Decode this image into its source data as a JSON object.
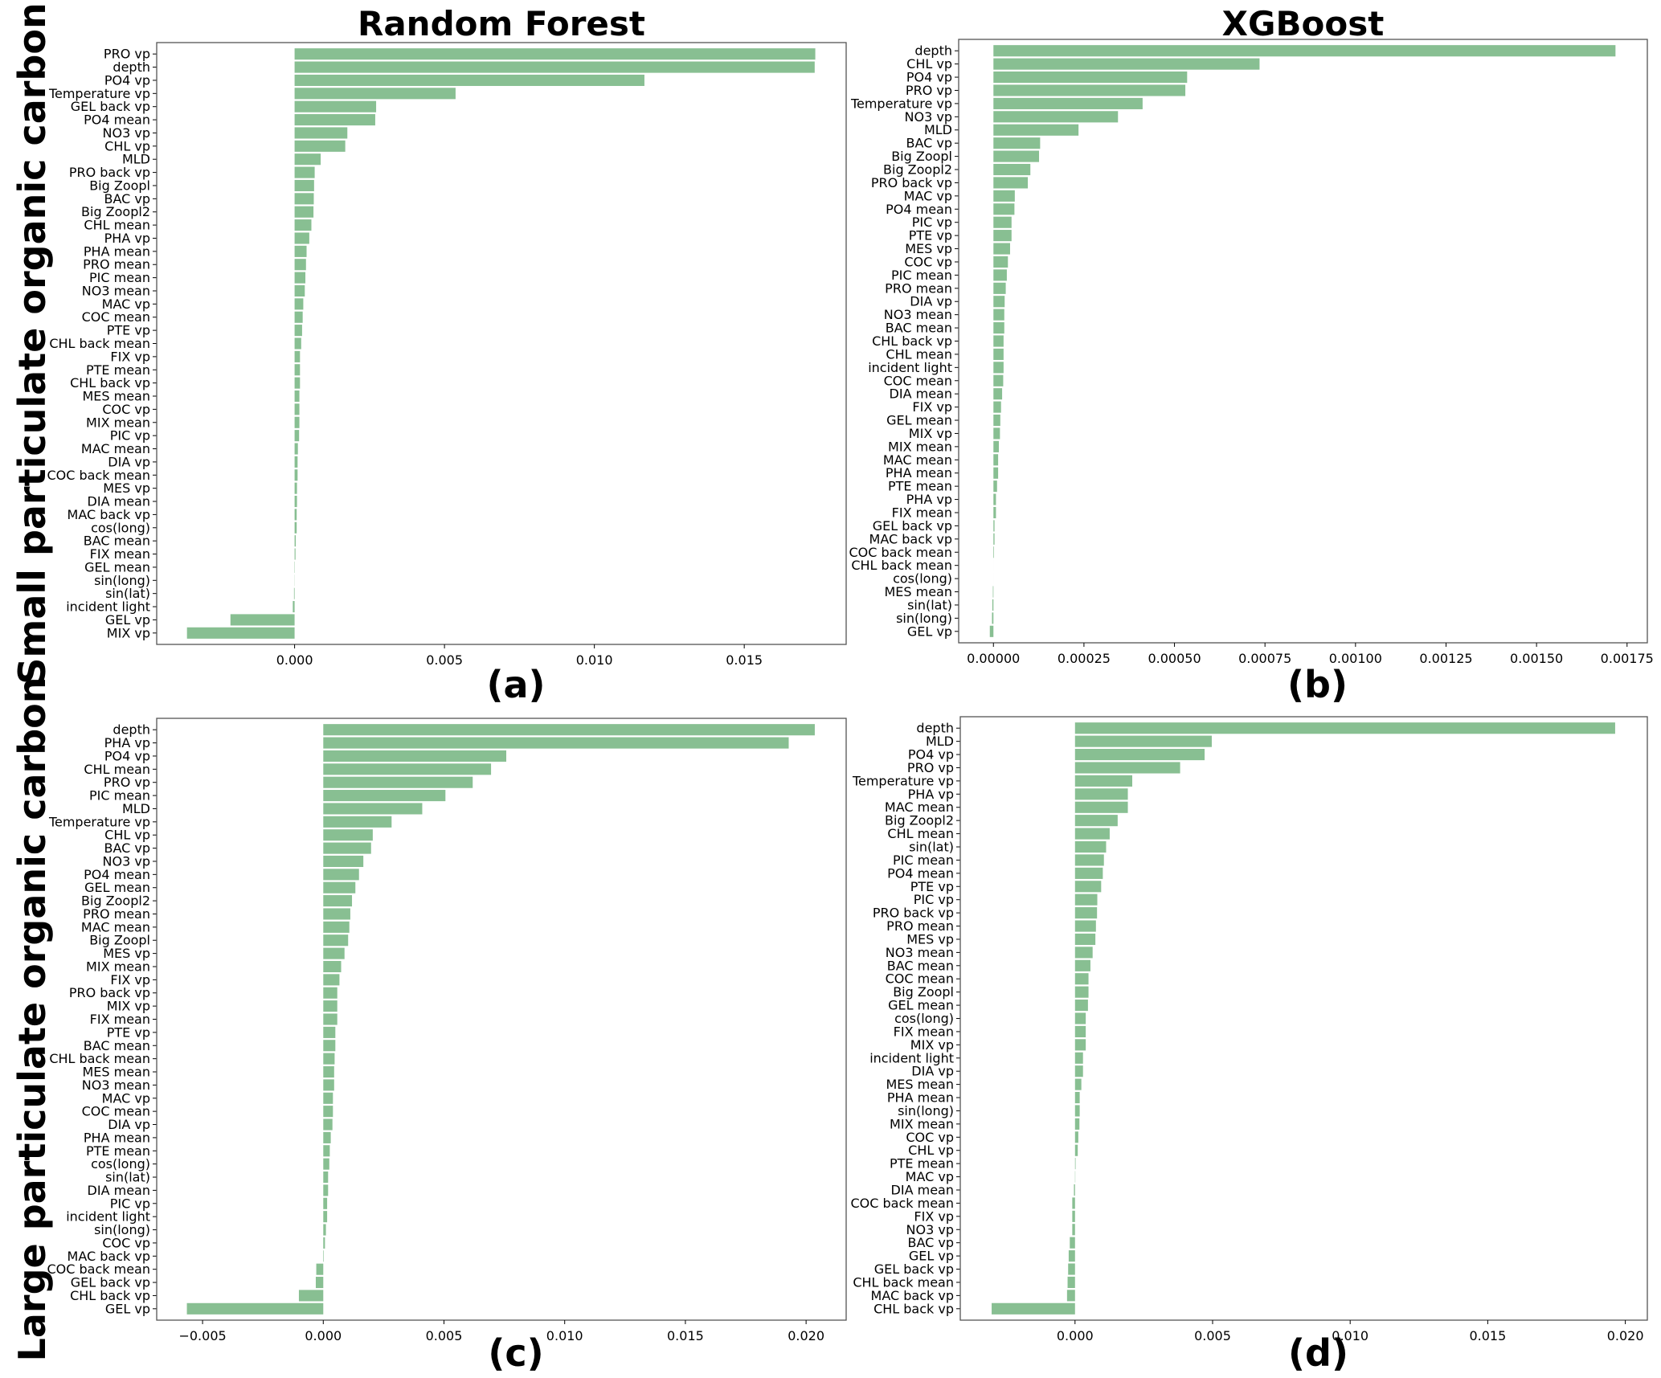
{
  "colors": {
    "bar": "#88bf92",
    "frame": "#555555"
  },
  "chart_data": [
    {
      "type": "bar",
      "orientation": "horizontal",
      "title": "Random Forest",
      "panel_label": "(a)",
      "ylabel": "Small particulate organic carbon",
      "xlim": [
        -0.0046,
        0.0184
      ],
      "xticks": [
        0,
        0.005,
        0.01,
        0.015
      ],
      "xtick_labels": [
        "0.000",
        "0.005",
        "0.010",
        "0.015"
      ],
      "categories": [
        "PRO vp",
        "depth",
        "PO4 vp",
        "Temperature vp",
        "GEL back vp",
        "PO4 mean",
        "NO3 vp",
        "CHL vp",
        "MLD",
        "PRO back vp",
        "Big Zoopl",
        "BAC vp",
        "Big Zoopl2",
        "CHL mean",
        "PHA vp",
        "PHA mean",
        "PRO mean",
        "PIC mean",
        "NO3 mean",
        "MAC vp",
        "COC mean",
        "PTE vp",
        "CHL back mean",
        "FIX vp",
        "PTE mean",
        "CHL back vp",
        "MES mean",
        "COC vp",
        "MIX mean",
        "PIC vp",
        "MAC mean",
        "DIA vp",
        "COC back mean",
        "MES vp",
        "DIA mean",
        "MAC back vp",
        "cos(long)",
        "BAC mean",
        "FIX mean",
        "GEL mean",
        "sin(long)",
        "sin(lat)",
        "incident light",
        "GEL vp",
        "MIX vp"
      ],
      "values": [
        0.01737,
        0.01735,
        0.01167,
        0.00537,
        0.00272,
        0.00269,
        0.00176,
        0.00169,
        0.00087,
        0.00067,
        0.00065,
        0.00064,
        0.00063,
        0.00056,
        0.00049,
        0.0004,
        0.00038,
        0.00036,
        0.00034,
        0.00029,
        0.00027,
        0.00025,
        0.00022,
        0.00018,
        0.00018,
        0.00018,
        0.00016,
        0.00016,
        0.00016,
        0.00015,
        0.00011,
        0.0001,
        0.0001,
        8e-05,
        8e-05,
        7e-05,
        7e-05,
        4e-05,
        3e-05,
        1e-05,
        5e-06,
        -2e-05,
        -6e-05,
        -0.00214,
        -0.00359
      ]
    },
    {
      "type": "bar",
      "orientation": "horizontal",
      "title": "XGBoost",
      "panel_label": "(b)",
      "xlim": [
        -9.6e-05,
        0.001806
      ],
      "xticks": [
        0,
        0.00025,
        0.0005,
        0.00075,
        0.001,
        0.00125,
        0.0015,
        0.00175
      ],
      "xtick_labels": [
        "0.00000",
        "0.00025",
        "0.00050",
        "0.00075",
        "0.00100",
        "0.00125",
        "0.00150",
        "0.00175"
      ],
      "categories": [
        "depth",
        "CHL vp",
        "PO4 vp",
        "PRO vp",
        "Temperature vp",
        "NO3 vp",
        "MLD",
        "BAC vp",
        "Big Zoopl",
        "Big Zoopl2",
        "PRO back vp",
        "MAC vp",
        "PO4 mean",
        "PIC vp",
        "PTE vp",
        "MES vp",
        "COC vp",
        "PIC mean",
        "PRO mean",
        "DIA vp",
        "NO3 mean",
        "BAC mean",
        "CHL back vp",
        "CHL mean",
        "incident light",
        "COC mean",
        "DIA mean",
        "FIX vp",
        "GEL mean",
        "MIX vp",
        "MIX mean",
        "MAC mean",
        "PHA mean",
        "PTE mean",
        "PHA vp",
        "FIX mean",
        "GEL back vp",
        "MAC back vp",
        "COC back mean",
        "CHL back mean",
        "cos(long)",
        "MES mean",
        "sin(lat)",
        "sin(long)",
        "GEL vp"
      ],
      "values": [
        0.001718,
        0.000735,
        0.000535,
        0.00053,
        0.000412,
        0.000344,
        0.000235,
        0.000129,
        0.000126,
        0.000102,
        9.5e-05,
        5.9e-05,
        5.8e-05,
        5e-05,
        5e-05,
        4.6e-05,
        4e-05,
        3.7e-05,
        3.4e-05,
        3.1e-05,
        3e-05,
        3e-05,
        2.8e-05,
        2.8e-05,
        2.8e-05,
        2.7e-05,
        2.4e-05,
        2.1e-05,
        1.9e-05,
        1.8e-05,
        1.5e-05,
        1.3e-05,
        1.3e-05,
        1e-05,
        7e-06,
        7e-06,
        3e-06,
        3e-06,
        1.5e-06,
        0,
        0,
        -1.5e-06,
        -3e-06,
        -4e-06,
        -1e-05
      ]
    },
    {
      "type": "bar",
      "orientation": "horizontal",
      "title": "",
      "panel_label": "(c)",
      "ylabel": "Large particulate organic carbon",
      "xlim": [
        -0.0069,
        0.02166
      ],
      "xticks": [
        -0.005,
        0,
        0.005,
        0.01,
        0.015,
        0.02
      ],
      "xtick_labels": [
        "−0.005",
        "0.000",
        "0.005",
        "0.010",
        "0.015",
        "0.020"
      ],
      "categories": [
        "depth",
        "PHA vp",
        "PO4 vp",
        "CHL mean",
        "PRO vp",
        "PIC mean",
        "MLD",
        "Temperature vp",
        "CHL vp",
        "BAC vp",
        "NO3 vp",
        "PO4 mean",
        "GEL mean",
        "Big Zoopl2",
        "PRO mean",
        "MAC mean",
        "Big Zoopl",
        "MES vp",
        "MIX mean",
        "FIX vp",
        "PRO back vp",
        "MIX vp",
        "FIX mean",
        "PTE vp",
        "BAC mean",
        "CHL back mean",
        "MES mean",
        "NO3 mean",
        "MAC vp",
        "COC mean",
        "DIA vp",
        "PHA mean",
        "PTE mean",
        "cos(long)",
        "sin(lat)",
        "DIA mean",
        "PIC vp",
        "incident light",
        "sin(long)",
        "COC vp",
        "MAC back vp",
        "COC back mean",
        "GEL back vp",
        "CHL back vp",
        "GEL vp"
      ],
      "values": [
        0.02036,
        0.01928,
        0.00758,
        0.00695,
        0.00619,
        0.00506,
        0.0041,
        0.00283,
        0.00205,
        0.00198,
        0.00166,
        0.00148,
        0.00133,
        0.00119,
        0.00112,
        0.00108,
        0.00103,
        0.00088,
        0.00074,
        0.00067,
        0.00058,
        0.00058,
        0.00058,
        0.0005,
        0.0005,
        0.00047,
        0.00045,
        0.00045,
        0.0004,
        0.0004,
        0.00038,
        0.00031,
        0.00027,
        0.00025,
        0.0002,
        0.0002,
        0.00016,
        0.00016,
        0.00011,
        7e-05,
        2e-05,
        -0.00029,
        -0.00031,
        -0.00101,
        -0.00565
      ]
    },
    {
      "type": "bar",
      "orientation": "horizontal",
      "title": "",
      "panel_label": "(d)",
      "xlim": [
        -0.00417,
        0.0208
      ],
      "xticks": [
        0,
        0.005,
        0.01,
        0.015,
        0.02
      ],
      "xtick_labels": [
        "0.000",
        "0.005",
        "0.010",
        "0.015",
        "0.020"
      ],
      "categories": [
        "depth",
        "MLD",
        "PO4 vp",
        "PRO vp",
        "Temperature vp",
        "PHA vp",
        "MAC mean",
        "Big Zoopl2",
        "CHL mean",
        "sin(lat)",
        "PIC mean",
        "PO4 mean",
        "PTE vp",
        "PIC vp",
        "PRO back vp",
        "PRO mean",
        "MES vp",
        "NO3 mean",
        "BAC mean",
        "COC mean",
        "Big Zoopl",
        "GEL mean",
        "cos(long)",
        "FIX mean",
        "MIX vp",
        "incident light",
        "DIA vp",
        "MES mean",
        "PHA mean",
        "sin(long)",
        "MIX mean",
        "COC vp",
        "CHL vp",
        "PTE mean",
        "MAC vp",
        "DIA mean",
        "COC back mean",
        "FIX vp",
        "NO3 vp",
        "BAC vp",
        "GEL vp",
        "GEL back vp",
        "CHL back mean",
        "MAC back vp",
        "CHL back vp"
      ],
      "values": [
        0.01963,
        0.00497,
        0.00471,
        0.00382,
        0.00208,
        0.00192,
        0.00192,
        0.00155,
        0.00126,
        0.00113,
        0.00105,
        0.00101,
        0.00095,
        0.00081,
        0.0008,
        0.00076,
        0.00074,
        0.00064,
        0.00056,
        0.00049,
        0.00049,
        0.00047,
        0.00039,
        0.00039,
        0.00039,
        0.00029,
        0.00029,
        0.00023,
        0.00017,
        0.00017,
        0.00016,
        0.00012,
        0.0001,
        2e-05,
        1e-05,
        -4e-05,
        -0.0001,
        -0.0001,
        -0.0001,
        -0.00019,
        -0.00023,
        -0.00025,
        -0.00027,
        -0.00029,
        -0.00303
      ]
    }
  ]
}
